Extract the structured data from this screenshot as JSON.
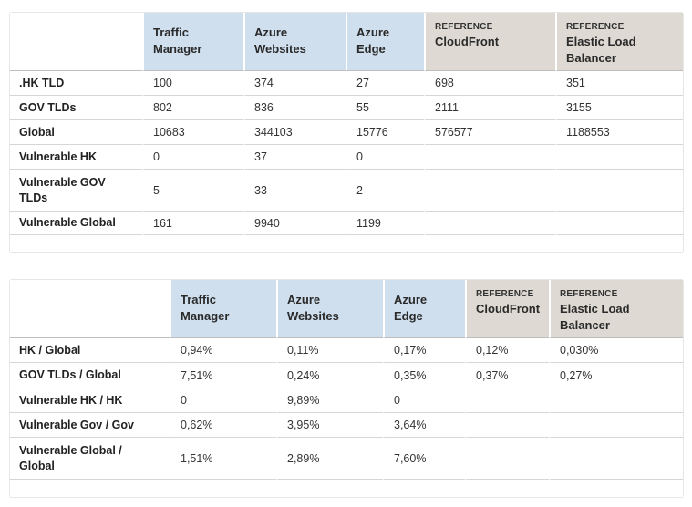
{
  "table1": {
    "columns": [
      {
        "ref": "",
        "label": "Traffic Manager",
        "style": "blue"
      },
      {
        "ref": "",
        "label": "Azure Websites",
        "style": "blue"
      },
      {
        "ref": "",
        "label": "Azure Edge",
        "style": "blue"
      },
      {
        "ref": "REFERENCE",
        "label": "CloudFront",
        "style": "tan"
      },
      {
        "ref": "REFERENCE",
        "label": "Elastic Load Balancer",
        "style": "tan"
      }
    ],
    "rows": [
      {
        "label": ".HK TLD",
        "cells": [
          "100",
          "374",
          "27",
          "698",
          "351"
        ]
      },
      {
        "label": "GOV TLDs",
        "cells": [
          "802",
          "836",
          "55",
          "2111",
          "3155"
        ]
      },
      {
        "label": "Global",
        "cells": [
          "10683",
          "344103",
          "15776",
          "576577",
          "1188553"
        ]
      },
      {
        "label": "Vulnerable HK",
        "cells": [
          "0",
          "37",
          "0",
          "",
          ""
        ]
      },
      {
        "label": "Vulnerable GOV TLDs",
        "cells": [
          "5",
          "33",
          "2",
          "",
          ""
        ]
      },
      {
        "label": "Vulnerable Global",
        "cells": [
          "161",
          "9940",
          "1199",
          "",
          ""
        ]
      }
    ]
  },
  "table2": {
    "columns": [
      {
        "ref": "",
        "label": "Traffic Manager",
        "style": "blue"
      },
      {
        "ref": "",
        "label": "Azure Websites",
        "style": "blue"
      },
      {
        "ref": "",
        "label": "Azure Edge",
        "style": "blue"
      },
      {
        "ref": "REFERENCE",
        "label": "CloudFront",
        "style": "tan"
      },
      {
        "ref": "REFERENCE",
        "label": "Elastic Load Balancer",
        "style": "tan"
      }
    ],
    "rows": [
      {
        "label": "HK / Global",
        "cells": [
          "0,94%",
          "0,11%",
          "0,17%",
          "0,12%",
          "0,030%"
        ]
      },
      {
        "label": "GOV TLDs / Global",
        "cells": [
          "7,51%",
          "0,24%",
          "0,35%",
          "0,37%",
          "0,27%"
        ]
      },
      {
        "label": "Vulnerable HK / HK",
        "cells": [
          "0",
          "9,89%",
          "0",
          "",
          ""
        ]
      },
      {
        "label": "Vulnerable Gov / Gov",
        "cells": [
          "0,62%",
          "3,95%",
          "3,64%",
          "",
          ""
        ]
      },
      {
        "label": "Vulnerable Global / Global",
        "cells": [
          "1,51%",
          "2,89%",
          "7,60%",
          "",
          ""
        ]
      }
    ]
  }
}
